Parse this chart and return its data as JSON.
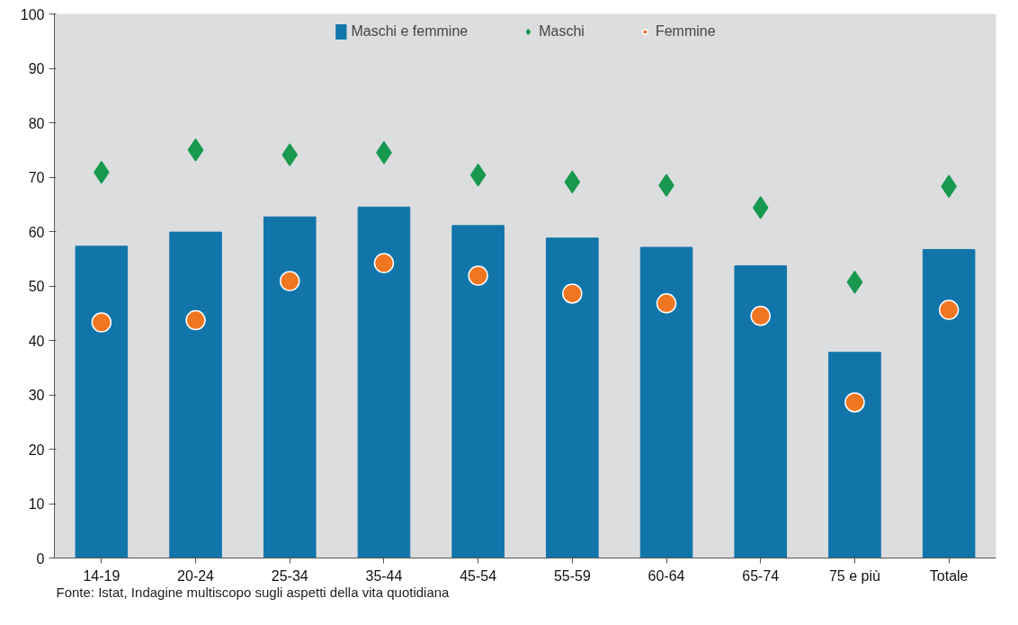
{
  "chart_data": {
    "type": "bar",
    "categories": [
      "14-19",
      "20-24",
      "25-34",
      "35-44",
      "45-54",
      "55-59",
      "60-64",
      "65-74",
      "75 e più",
      "Totale"
    ],
    "series": [
      {
        "name": "Maschi e femmine",
        "color": "#1175aa",
        "values": [
          57.3,
          59.9,
          62.7,
          64.5,
          61.1,
          58.8,
          57.1,
          53.7,
          37.8,
          56.7
        ]
      },
      {
        "name": "Maschi",
        "type": "scatter",
        "marker": "diamond",
        "color": "#18994f",
        "values": [
          70.9,
          75.0,
          74.1,
          74.5,
          70.4,
          69.1,
          68.5,
          64.4,
          50.7,
          68.3
        ]
      },
      {
        "name": "Femmine",
        "type": "scatter",
        "marker": "circle",
        "color": "#f07622",
        "values": [
          43.3,
          43.7,
          50.9,
          54.2,
          51.9,
          48.6,
          46.8,
          44.5,
          28.6,
          45.6
        ]
      }
    ],
    "ylim": [
      0,
      100
    ],
    "yticks": [
      0,
      10,
      20,
      30,
      40,
      50,
      60,
      70,
      80,
      90,
      100
    ],
    "grid": false,
    "legend": "top",
    "annotations": [
      "Fonte: Istat, Indagine multiscopo sugli aspetti della vita quotidiana"
    ]
  }
}
